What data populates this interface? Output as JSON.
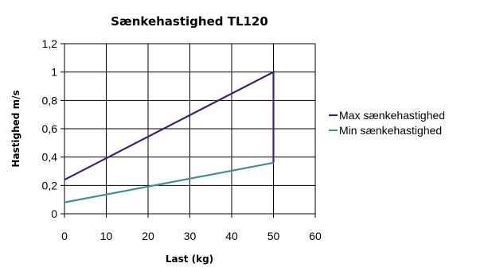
{
  "chart_data": {
    "type": "line",
    "title": "Sænkehastighed TL120",
    "xlabel": "Last (kg)",
    "ylabel": "Hastighed m/s",
    "xlim": [
      0,
      60
    ],
    "ylim": [
      0,
      1.2
    ],
    "x_ticks": [
      "0",
      "10",
      "20",
      "30",
      "40",
      "50",
      "60"
    ],
    "y_ticks": [
      "0",
      "0,2",
      "0,4",
      "0,6",
      "0,8",
      "1",
      "1,2"
    ],
    "x_tick_values": [
      0,
      10,
      20,
      30,
      40,
      50,
      60
    ],
    "y_tick_values": [
      0,
      0.2,
      0.4,
      0.6,
      0.8,
      1.0,
      1.2
    ],
    "grid": true,
    "legend_position": "right",
    "series": [
      {
        "name": "Max sænkehastighed",
        "color": "#3c1e7a",
        "points": [
          [
            0,
            0.24
          ],
          [
            50,
            1.0
          ],
          [
            50,
            0.36
          ]
        ]
      },
      {
        "name": "Min sænkehastighed",
        "color": "#3a9393",
        "points": [
          [
            0,
            0.08
          ],
          [
            50,
            0.36
          ]
        ]
      }
    ]
  }
}
